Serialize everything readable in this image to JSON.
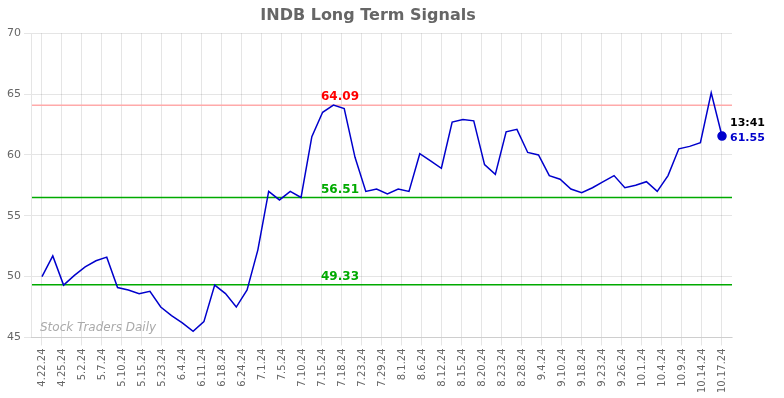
{
  "chart_data": {
    "type": "line",
    "title": "INDB Long Term Signals",
    "color": "#0000cc",
    "values": [
      50.0,
      51.7,
      49.3,
      50.1,
      50.8,
      51.3,
      51.6,
      49.1,
      48.9,
      48.6,
      48.8,
      47.5,
      46.8,
      46.2,
      45.5,
      46.3,
      49.3,
      48.6,
      47.5,
      48.9,
      52.2,
      57.0,
      56.3,
      57.0,
      56.5,
      61.5,
      63.5,
      64.09,
      63.8,
      59.8,
      57.0,
      57.2,
      56.8,
      57.2,
      57.0,
      60.1,
      59.5,
      58.9,
      62.7,
      62.9,
      62.8,
      59.2,
      58.4,
      61.9,
      62.1,
      60.2,
      60.0,
      58.3,
      58.0,
      57.2,
      56.9,
      57.3,
      57.8,
      58.3,
      57.3,
      57.5,
      57.8,
      57.0,
      58.3,
      60.5,
      60.7,
      61.0,
      65.1,
      61.55
    ],
    "xlim": [
      -0.5,
      34.5
    ],
    "xticks": [
      {
        "value": 0,
        "label": "4.22.24"
      },
      {
        "value": 1,
        "label": "4.25.24"
      },
      {
        "value": 2,
        "label": "5.2.24"
      },
      {
        "value": 3,
        "label": "5.7.24"
      },
      {
        "value": 4,
        "label": "5.10.24"
      },
      {
        "value": 5,
        "label": "5.15.24"
      },
      {
        "value": 6,
        "label": "5.23.24"
      },
      {
        "value": 7,
        "label": "6.4.24"
      },
      {
        "value": 8,
        "label": "6.11.24"
      },
      {
        "value": 9,
        "label": "6.18.24"
      },
      {
        "value": 10,
        "label": "6.24.24"
      },
      {
        "value": 11,
        "label": "7.1.24"
      },
      {
        "value": 12,
        "label": "7.5.24"
      },
      {
        "value": 13,
        "label": "7.10.24"
      },
      {
        "value": 14,
        "label": "7.15.24"
      },
      {
        "value": 15,
        "label": "7.18.24"
      },
      {
        "value": 16,
        "label": "7.23.24"
      },
      {
        "value": 17,
        "label": "7.29.24"
      },
      {
        "value": 18,
        "label": "8.1.24"
      },
      {
        "value": 19,
        "label": "8.6.24"
      },
      {
        "value": 20,
        "label": "8.12.24"
      },
      {
        "value": 21,
        "label": "8.15.24"
      },
      {
        "value": 22,
        "label": "8.20.24"
      },
      {
        "value": 23,
        "label": "8.23.24"
      },
      {
        "value": 24,
        "label": "8.28.24"
      },
      {
        "value": 25,
        "label": "9.4.24"
      },
      {
        "value": 26,
        "label": "9.10.24"
      },
      {
        "value": 27,
        "label": "9.18.24"
      },
      {
        "value": 28,
        "label": "9.23.24"
      },
      {
        "value": 29,
        "label": "9.26.24"
      },
      {
        "value": 30,
        "label": "10.1.24"
      },
      {
        "value": 31,
        "label": "10.4.24"
      },
      {
        "value": 32,
        "label": "10.9.24"
      },
      {
        "value": 33,
        "label": "10.14.24"
      },
      {
        "value": 34,
        "label": "10.17.24"
      }
    ],
    "ylim": [
      45,
      70
    ],
    "yticks": [
      45,
      50,
      55,
      60,
      65,
      70
    ],
    "grid": true,
    "reference_lines": [
      {
        "value": 64.09,
        "label": "64.09",
        "color": "#ffaaaa",
        "label_color": "red"
      },
      {
        "value": 56.51,
        "label": "56.51",
        "color": "#00aa00",
        "label_color": "#00aa00"
      },
      {
        "value": 49.33,
        "label": "49.33",
        "color": "#00aa00",
        "label_color": "#00aa00"
      }
    ],
    "annotations": [
      {
        "text": "13:41",
        "color": "black"
      },
      {
        "text": "61.55",
        "value": 61.55,
        "color": "#0000cc"
      }
    ],
    "watermark": {
      "text": "Stock Traders Daily",
      "color": "#aaaaaa"
    }
  }
}
